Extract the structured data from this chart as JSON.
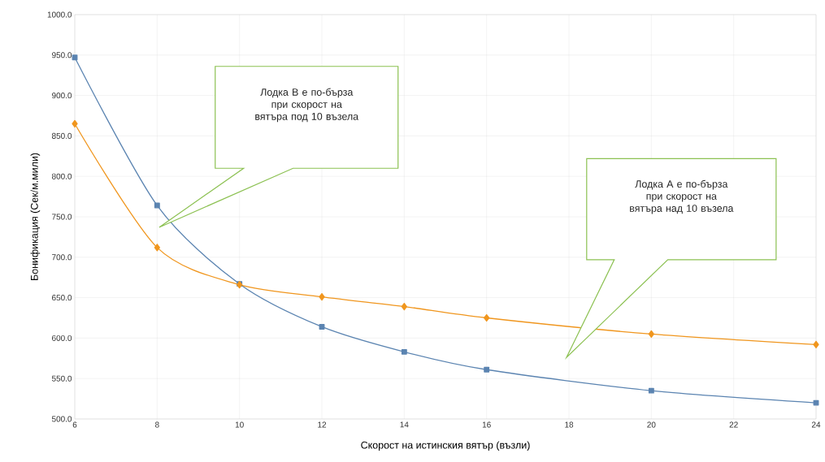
{
  "chart_data": {
    "type": "line",
    "xlabel": "Скорост на истинския вятър (възли)",
    "ylabel": "Бонификация (Сек/м.мили)",
    "x": [
      6,
      8,
      10,
      12,
      14,
      16,
      20,
      24
    ],
    "series": [
      {
        "color": "#f0961e",
        "marker": "diamond",
        "values": [
          865,
          712,
          666,
          651,
          639,
          625,
          605,
          592
        ]
      },
      {
        "color": "#5b84b1",
        "marker": "square",
        "values": [
          947,
          764,
          667,
          614,
          583,
          561,
          535,
          520
        ]
      }
    ],
    "xlim": [
      6,
      24
    ],
    "ylim": [
      500,
      1000
    ],
    "xticks": [
      6,
      8,
      10,
      12,
      14,
      16,
      18,
      20,
      22,
      24
    ],
    "yticks": [
      {
        "value": 500,
        "label": "500.0"
      },
      {
        "value": 550,
        "label": "550.0"
      },
      {
        "value": 600,
        "label": "600.0"
      },
      {
        "value": 650,
        "label": "650.0"
      },
      {
        "value": 700,
        "label": "700.0"
      },
      {
        "value": 750,
        "label": "750.0"
      },
      {
        "value": 800,
        "label": "800.0"
      },
      {
        "value": 850,
        "label": "850.0"
      },
      {
        "value": 900,
        "label": "900.0"
      },
      {
        "value": 950,
        "label": "950.0"
      },
      {
        "value": 1000,
        "label": "1000.0"
      }
    ],
    "grid": true,
    "annotations": [
      "Лодка В е по-бърза при скорост на вятъра под 10 възела",
      "Лодка А е по-бърза при скорост на вятъра над 10 възела"
    ]
  }
}
